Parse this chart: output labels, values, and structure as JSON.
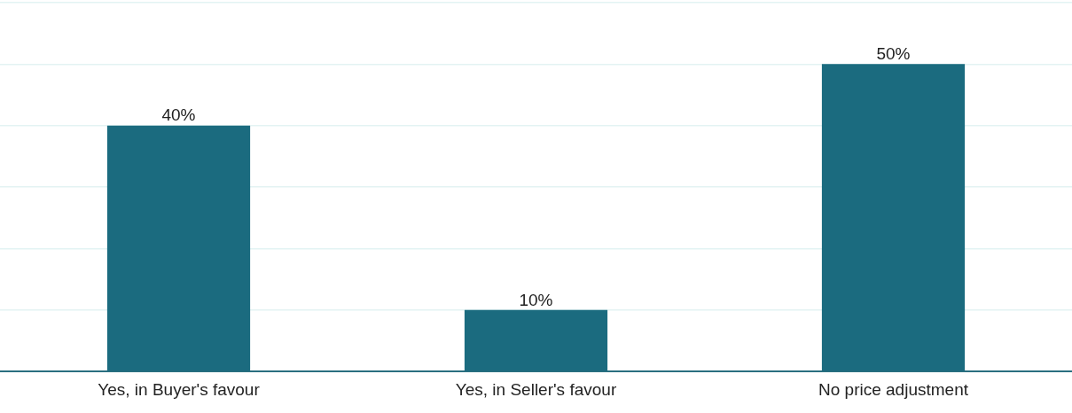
{
  "chart_data": {
    "type": "bar",
    "categories": [
      "Yes, in Buyer's favour",
      "Yes, in Seller's favour",
      "No price adjustment"
    ],
    "values": [
      40,
      10,
      50
    ],
    "value_labels": [
      "40%",
      "10%",
      "50%"
    ],
    "color": "#1b6b7f",
    "ylim": [
      0,
      60
    ],
    "yticks": [
      {
        "value": 0,
        "label": null
      },
      {
        "value": 10,
        "label": null
      },
      {
        "value": 20,
        "label": null
      },
      {
        "value": 30,
        "label": null
      },
      {
        "value": 40,
        "label": null
      },
      {
        "value": 50,
        "label": null
      },
      {
        "value": 60,
        "label": null
      }
    ],
    "grid": "y",
    "tick_labels": "x",
    "legend": false
  }
}
